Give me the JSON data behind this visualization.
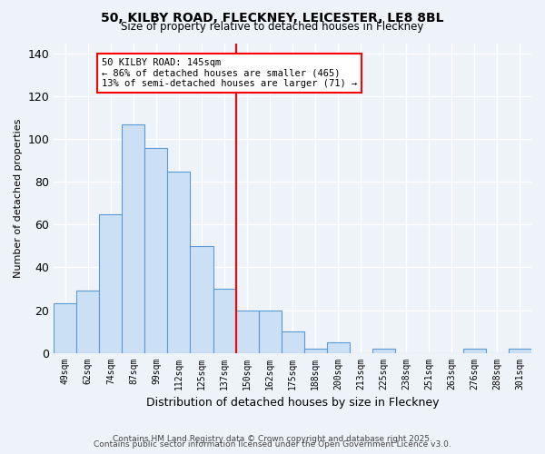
{
  "title": "50, KILBY ROAD, FLECKNEY, LEICESTER, LE8 8BL",
  "subtitle": "Size of property relative to detached houses in Fleckney",
  "xlabel": "Distribution of detached houses by size in Fleckney",
  "ylabel": "Number of detached properties",
  "bar_labels": [
    "49sqm",
    "62sqm",
    "74sqm",
    "87sqm",
    "99sqm",
    "112sqm",
    "125sqm",
    "137sqm",
    "150sqm",
    "162sqm",
    "175sqm",
    "188sqm",
    "200sqm",
    "213sqm",
    "225sqm",
    "238sqm",
    "251sqm",
    "263sqm",
    "276sqm",
    "288sqm",
    "301sqm"
  ],
  "bar_values": [
    23,
    29,
    65,
    107,
    96,
    85,
    50,
    30,
    20,
    20,
    10,
    2,
    5,
    0,
    2,
    0,
    0,
    0,
    2,
    0,
    2
  ],
  "bar_color": "#cce0f5",
  "bar_edgecolor": "#5b9bd5",
  "vline_color": "red",
  "annotation_title": "50 KILBY ROAD: 145sqm",
  "annotation_line1": "← 86% of detached houses are smaller (465)",
  "annotation_line2": "13% of semi-detached houses are larger (71) →",
  "ylim_max": 145,
  "yticks": [
    0,
    20,
    40,
    60,
    80,
    100,
    120,
    140
  ],
  "background_color": "#eef2f9",
  "grid_color": "#ffffff",
  "footer1": "Contains HM Land Registry data © Crown copyright and database right 2025.",
  "footer2": "Contains public sector information licensed under the Open Government Licence v3.0."
}
